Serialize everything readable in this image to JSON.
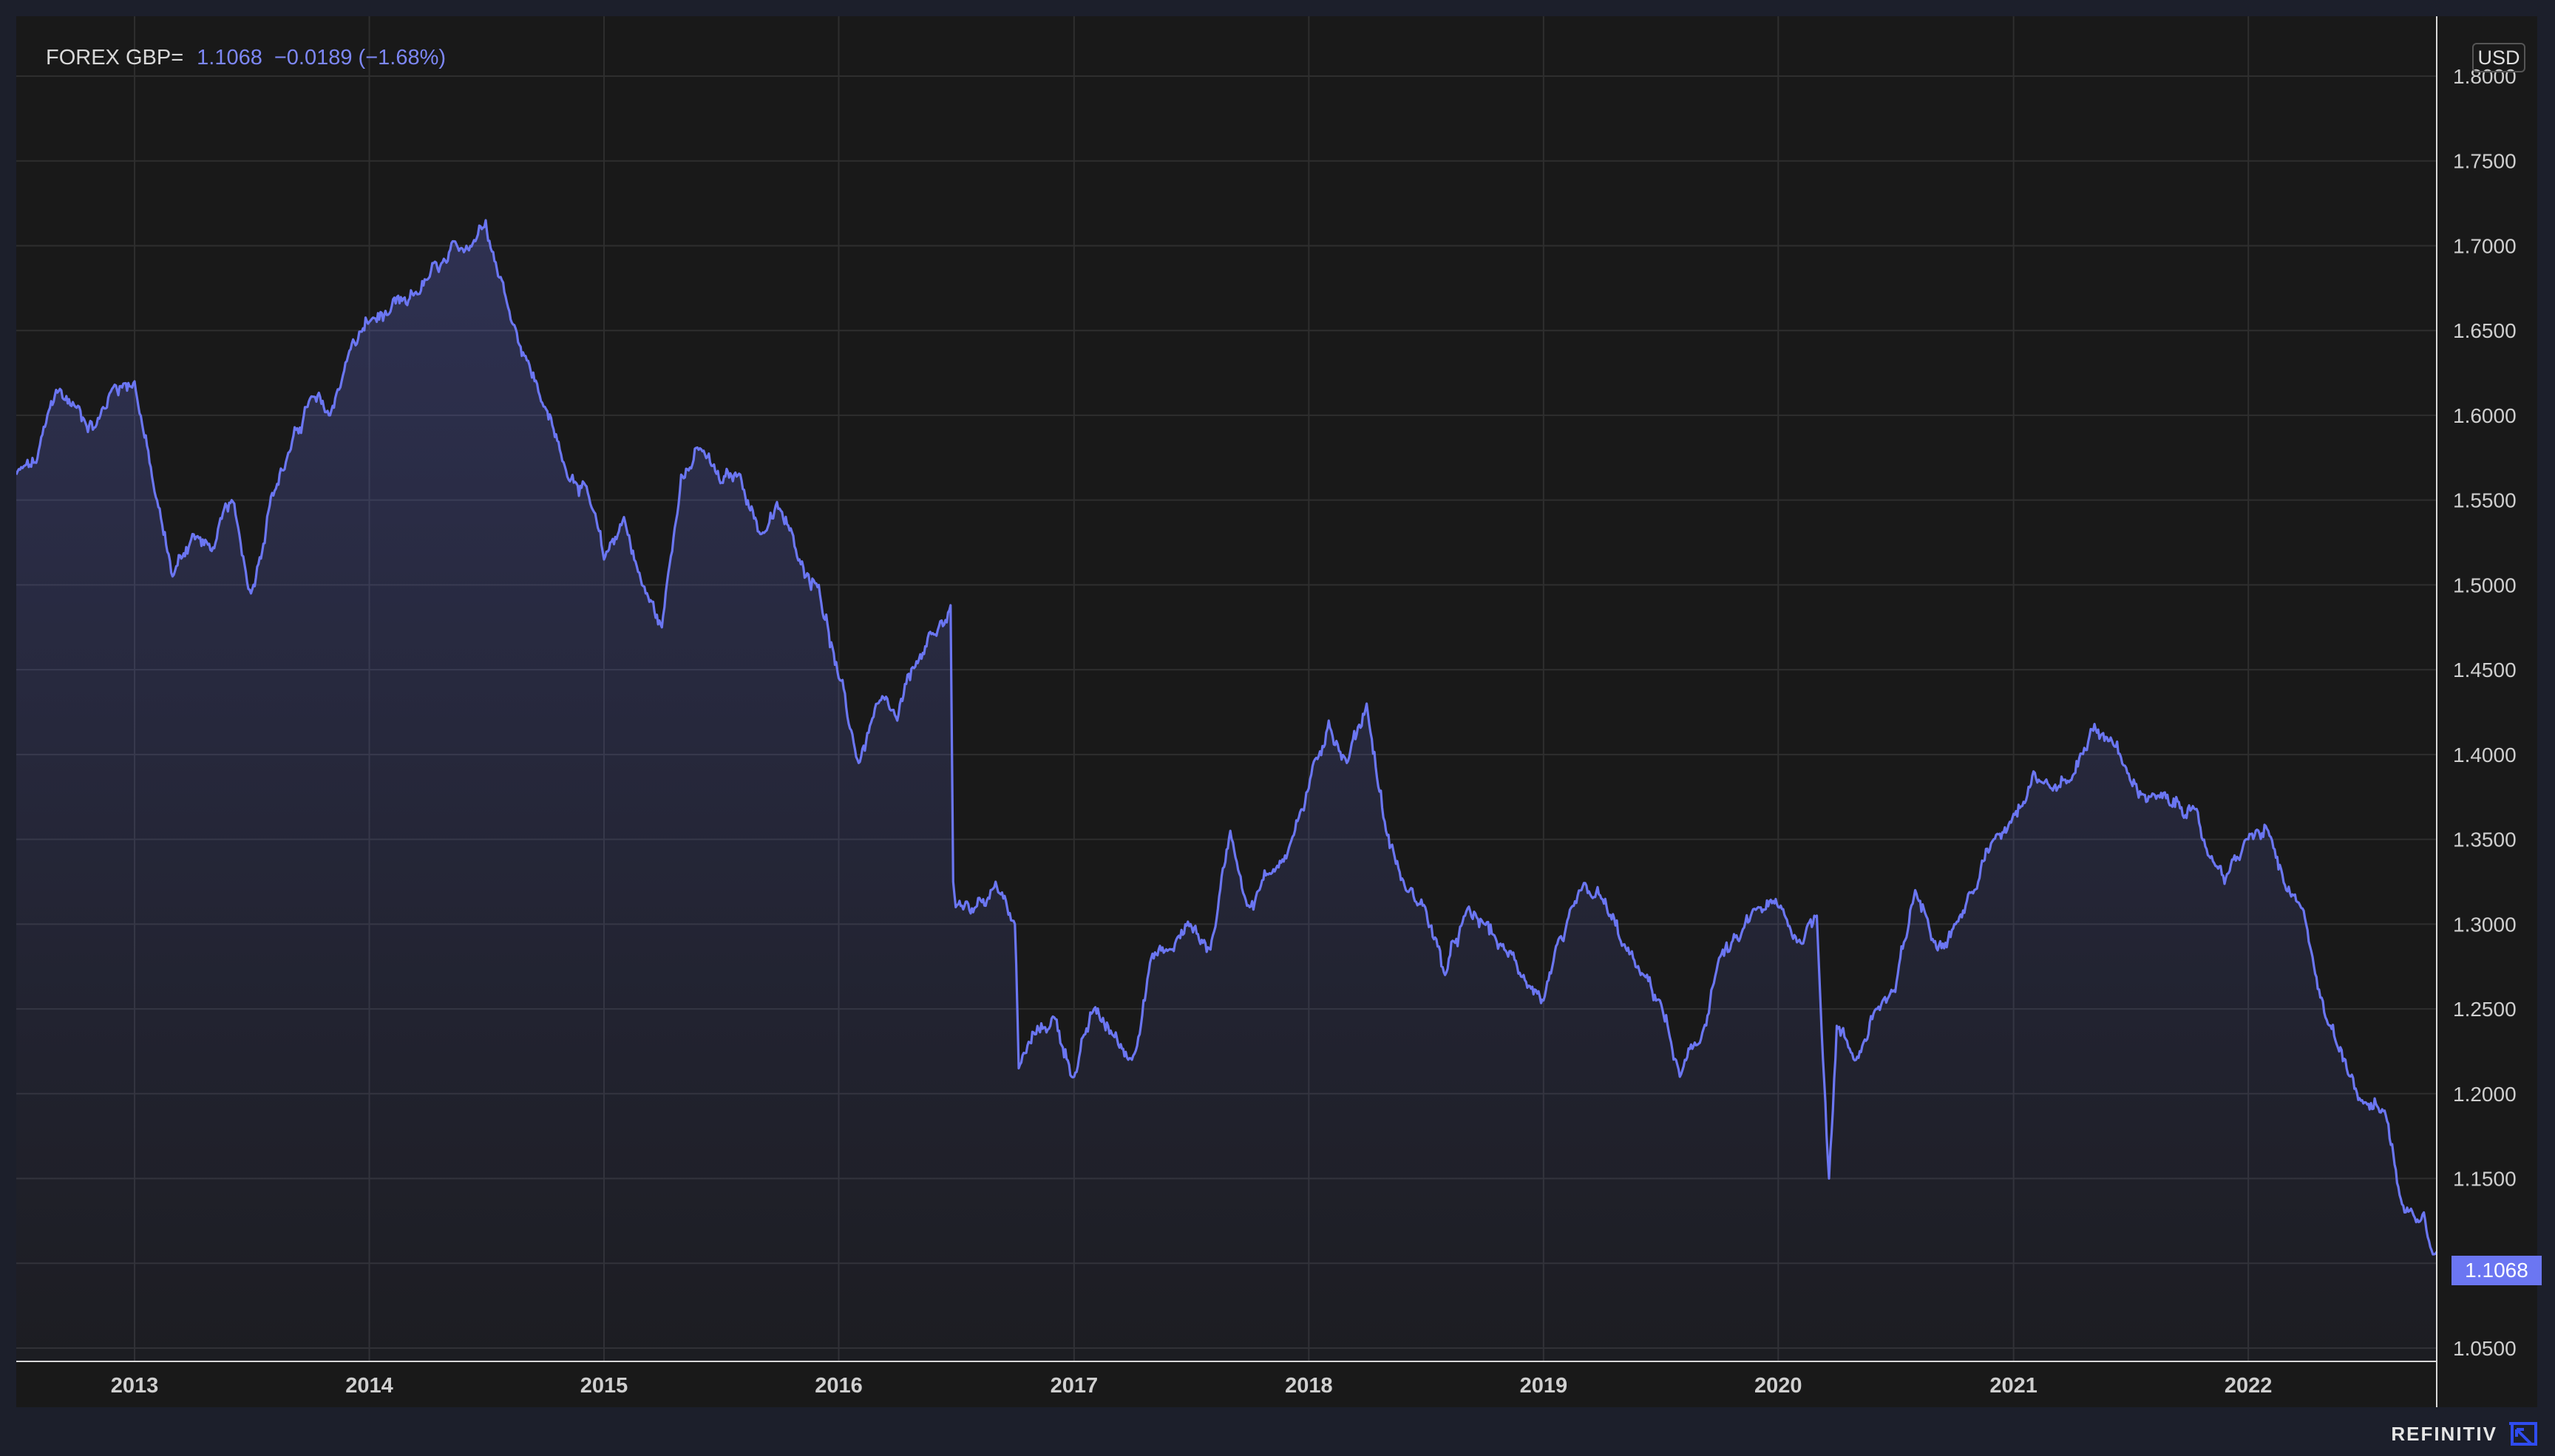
{
  "header": {
    "ric": "FOREX GBP=",
    "last_value": "1.1068",
    "change": "−0.0189 (−1.68%)"
  },
  "currency": "USD",
  "last_price_label": "1.1068",
  "brand": {
    "name": "REFINITIV"
  },
  "colors": {
    "line": "#6b76f2",
    "background": "#191919",
    "grid": "#2e2e2e",
    "axis": "#cfcfcf",
    "accent_label": "#6b76f2"
  },
  "chart_data": {
    "type": "area",
    "title": "",
    "xlabel": "",
    "ylabel": "",
    "grid": true,
    "x_ticks": [
      "2013",
      "2014",
      "2015",
      "2016",
      "2017",
      "2018",
      "2019",
      "2020",
      "2021",
      "2022"
    ],
    "y_ticks": [
      "1.0500",
      "1.1000",
      "1.1500",
      "1.2000",
      "1.2500",
      "1.3000",
      "1.3500",
      "1.4000",
      "1.4500",
      "1.5000",
      "1.5500",
      "1.6000",
      "1.6500",
      "1.7000",
      "1.7500",
      "1.8000"
    ],
    "ylim": [
      1.05,
      1.8
    ],
    "xlim": [
      "2012-07-01",
      "2022-10-21"
    ],
    "series": [
      {
        "points": [
          [
            "2012-07-01",
            1.565
          ],
          [
            "2012-08-01",
            1.572
          ],
          [
            "2012-09-01",
            1.615
          ],
          [
            "2012-10-01",
            1.605
          ],
          [
            "2012-11-01",
            1.593
          ],
          [
            "2012-12-01",
            1.618
          ],
          [
            "2013-01-01",
            1.62
          ],
          [
            "2013-02-01",
            1.555
          ],
          [
            "2013-03-01",
            1.505
          ],
          [
            "2013-04-01",
            1.53
          ],
          [
            "2013-05-01",
            1.52
          ],
          [
            "2013-06-01",
            1.55
          ],
          [
            "2013-07-01",
            1.495
          ],
          [
            "2013-08-01",
            1.552
          ],
          [
            "2013-09-01",
            1.58
          ],
          [
            "2013-10-01",
            1.61
          ],
          [
            "2013-11-01",
            1.6
          ],
          [
            "2013-12-01",
            1.638
          ],
          [
            "2014-01-01",
            1.655
          ],
          [
            "2014-02-01",
            1.66
          ],
          [
            "2014-03-01",
            1.665
          ],
          [
            "2014-04-01",
            1.68
          ],
          [
            "2014-05-01",
            1.69
          ],
          [
            "2014-06-01",
            1.7
          ],
          [
            "2014-07-01",
            1.715
          ],
          [
            "2014-08-01",
            1.67
          ],
          [
            "2014-09-01",
            1.635
          ],
          [
            "2014-10-01",
            1.605
          ],
          [
            "2014-11-01",
            1.57
          ],
          [
            "2014-12-01",
            1.56
          ],
          [
            "2015-01-01",
            1.515
          ],
          [
            "2015-02-01",
            1.54
          ],
          [
            "2015-03-01",
            1.5
          ],
          [
            "2015-04-01",
            1.475
          ],
          [
            "2015-05-01",
            1.565
          ],
          [
            "2015-06-01",
            1.58
          ],
          [
            "2015-07-01",
            1.56
          ],
          [
            "2015-08-01",
            1.565
          ],
          [
            "2015-09-01",
            1.53
          ],
          [
            "2015-10-01",
            1.545
          ],
          [
            "2015-11-01",
            1.515
          ],
          [
            "2015-12-01",
            1.5
          ],
          [
            "2016-01-01",
            1.445
          ],
          [
            "2016-02-01",
            1.395
          ],
          [
            "2016-03-01",
            1.43
          ],
          [
            "2016-04-01",
            1.42
          ],
          [
            "2016-05-01",
            1.455
          ],
          [
            "2016-06-01",
            1.47
          ],
          [
            "2016-06-23",
            1.488
          ],
          [
            "2016-06-27",
            1.325
          ],
          [
            "2016-07-01",
            1.31
          ],
          [
            "2016-08-01",
            1.31
          ],
          [
            "2016-09-01",
            1.325
          ],
          [
            "2016-10-01",
            1.3
          ],
          [
            "2016-10-07",
            1.215
          ],
          [
            "2016-11-01",
            1.235
          ],
          [
            "2016-12-01",
            1.245
          ],
          [
            "2017-01-01",
            1.21
          ],
          [
            "2017-02-01",
            1.25
          ],
          [
            "2017-03-01",
            1.235
          ],
          [
            "2017-04-01",
            1.22
          ],
          [
            "2017-05-01",
            1.28
          ],
          [
            "2017-06-01",
            1.285
          ],
          [
            "2017-07-01",
            1.3
          ],
          [
            "2017-08-01",
            1.285
          ],
          [
            "2017-09-01",
            1.355
          ],
          [
            "2017-10-01",
            1.31
          ],
          [
            "2017-11-01",
            1.33
          ],
          [
            "2017-12-01",
            1.345
          ],
          [
            "2018-01-01",
            1.38
          ],
          [
            "2018-02-01",
            1.42
          ],
          [
            "2018-03-01",
            1.395
          ],
          [
            "2018-04-01",
            1.43
          ],
          [
            "2018-05-01",
            1.355
          ],
          [
            "2018-06-01",
            1.32
          ],
          [
            "2018-07-01",
            1.31
          ],
          [
            "2018-08-01",
            1.27
          ],
          [
            "2018-09-01",
            1.305
          ],
          [
            "2018-10-01",
            1.3
          ],
          [
            "2018-11-01",
            1.285
          ],
          [
            "2018-12-01",
            1.27
          ],
          [
            "2019-01-01",
            1.255
          ],
          [
            "2019-02-01",
            1.29
          ],
          [
            "2019-03-01",
            1.32
          ],
          [
            "2019-04-01",
            1.315
          ],
          [
            "2019-05-01",
            1.29
          ],
          [
            "2019-06-01",
            1.27
          ],
          [
            "2019-07-01",
            1.255
          ],
          [
            "2019-08-01",
            1.21
          ],
          [
            "2019-09-01",
            1.23
          ],
          [
            "2019-10-01",
            1.28
          ],
          [
            "2019-11-01",
            1.29
          ],
          [
            "2019-12-01",
            1.31
          ],
          [
            "2020-01-01",
            1.31
          ],
          [
            "2020-02-01",
            1.29
          ],
          [
            "2020-03-01",
            1.305
          ],
          [
            "2020-03-20",
            1.15
          ],
          [
            "2020-04-01",
            1.24
          ],
          [
            "2020-05-01",
            1.22
          ],
          [
            "2020-06-01",
            1.25
          ],
          [
            "2020-07-01",
            1.26
          ],
          [
            "2020-08-01",
            1.32
          ],
          [
            "2020-09-01",
            1.29
          ],
          [
            "2020-10-01",
            1.3
          ],
          [
            "2020-11-01",
            1.32
          ],
          [
            "2020-12-01",
            1.35
          ],
          [
            "2021-01-01",
            1.365
          ],
          [
            "2021-02-01",
            1.39
          ],
          [
            "2021-03-01",
            1.38
          ],
          [
            "2021-04-01",
            1.385
          ],
          [
            "2021-05-01",
            1.415
          ],
          [
            "2021-06-01",
            1.41
          ],
          [
            "2021-07-01",
            1.385
          ],
          [
            "2021-08-01",
            1.375
          ],
          [
            "2021-09-01",
            1.37
          ],
          [
            "2021-10-01",
            1.37
          ],
          [
            "2021-11-01",
            1.34
          ],
          [
            "2021-12-01",
            1.33
          ],
          [
            "2022-01-01",
            1.35
          ],
          [
            "2022-02-01",
            1.355
          ],
          [
            "2022-03-01",
            1.32
          ],
          [
            "2022-04-01",
            1.3
          ],
          [
            "2022-05-01",
            1.245
          ],
          [
            "2022-06-01",
            1.22
          ],
          [
            "2022-07-01",
            1.195
          ],
          [
            "2022-08-01",
            1.19
          ],
          [
            "2022-09-01",
            1.13
          ],
          [
            "2022-10-01",
            1.13
          ],
          [
            "2022-10-21",
            1.1068
          ]
        ]
      }
    ]
  }
}
